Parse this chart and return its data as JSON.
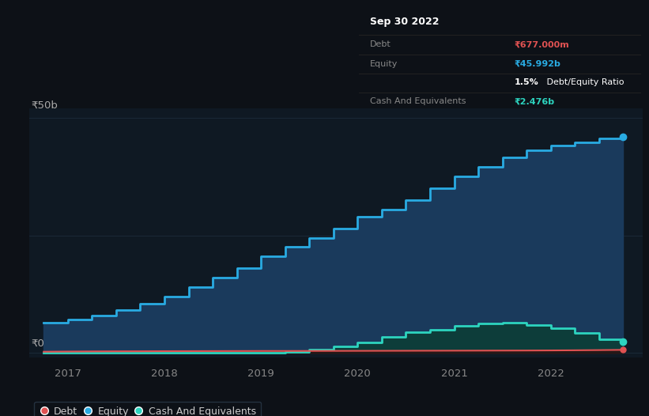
{
  "bg_color": "#0d1117",
  "plot_bg_color": "#0f1923",
  "grid_color": "#1e2d3d",
  "title_label": "₹50b",
  "zero_label": "₹0",
  "tooltip": {
    "date": "Sep 30 2022",
    "debt_label": "Debt",
    "debt_value": "₹677.000m",
    "equity_label": "Equity",
    "equity_value": "₹45.992b",
    "ratio_bold": "1.5%",
    "ratio_text": " Debt/Equity Ratio",
    "cash_label": "Cash And Equivalents",
    "cash_value": "₹2.476b",
    "debt_color": "#e05252",
    "equity_color": "#29abe2",
    "cash_color": "#2dd4bf",
    "bg": "#050505",
    "border": "#333333",
    "text_main": "#ffffff",
    "text_dim": "#888888"
  },
  "equity": {
    "x": [
      2016.75,
      2017.0,
      2017.25,
      2017.5,
      2017.75,
      2018.0,
      2018.25,
      2018.5,
      2018.75,
      2019.0,
      2019.25,
      2019.5,
      2019.75,
      2020.0,
      2020.25,
      2020.5,
      2020.75,
      2021.0,
      2021.25,
      2021.5,
      2021.75,
      2022.0,
      2022.25,
      2022.5,
      2022.75
    ],
    "y": [
      6.5,
      7.2,
      8.0,
      9.2,
      10.5,
      12.0,
      14.0,
      16.0,
      18.0,
      20.5,
      22.5,
      24.5,
      26.5,
      29.0,
      30.5,
      32.5,
      35.0,
      37.5,
      39.5,
      41.5,
      43.0,
      44.0,
      44.8,
      45.5,
      45.992
    ],
    "color": "#29abe2",
    "fill_color": "#1a3a5c",
    "line_width": 2.0
  },
  "cash": {
    "x": [
      2016.75,
      2017.0,
      2017.25,
      2017.5,
      2017.75,
      2018.0,
      2018.25,
      2018.5,
      2018.75,
      2019.0,
      2019.25,
      2019.5,
      2019.75,
      2020.0,
      2020.25,
      2020.5,
      2020.75,
      2021.0,
      2021.25,
      2021.5,
      2021.75,
      2022.0,
      2022.25,
      2022.5,
      2022.75
    ],
    "y": [
      0.0,
      0.0,
      0.0,
      0.0,
      0.0,
      0.0,
      0.0,
      0.0,
      0.0,
      0.1,
      0.3,
      0.7,
      1.4,
      2.2,
      3.5,
      4.5,
      5.0,
      5.8,
      6.3,
      6.5,
      6.0,
      5.2,
      4.2,
      3.0,
      2.476
    ],
    "color": "#2dd4bf",
    "fill_color": "#0d3d3a",
    "line_width": 2.0
  },
  "debt": {
    "x": [
      2016.75,
      2017.0,
      2017.25,
      2017.5,
      2017.75,
      2018.0,
      2018.25,
      2018.5,
      2018.75,
      2019.0,
      2019.25,
      2019.5,
      2019.75,
      2020.0,
      2020.25,
      2020.5,
      2020.75,
      2021.0,
      2021.25,
      2021.5,
      2021.75,
      2022.0,
      2022.25,
      2022.5,
      2022.75
    ],
    "y": [
      0.28,
      0.32,
      0.35,
      0.37,
      0.38,
      0.4,
      0.41,
      0.42,
      0.43,
      0.44,
      0.44,
      0.45,
      0.46,
      0.47,
      0.48,
      0.49,
      0.5,
      0.51,
      0.52,
      0.53,
      0.54,
      0.56,
      0.59,
      0.63,
      0.677
    ],
    "color": "#e05252",
    "fill_color": "#2a1010",
    "line_width": 1.5
  },
  "ylim": [
    -1,
    52
  ],
  "xlim": [
    2016.6,
    2022.95
  ],
  "yticks_major": [
    0,
    25,
    50
  ],
  "legend": {
    "debt_label": "Debt",
    "equity_label": "Equity",
    "cash_label": "Cash And Equivalents",
    "bg": "#0d1117",
    "border": "#2a3a4a",
    "text_color": "#cccccc"
  }
}
